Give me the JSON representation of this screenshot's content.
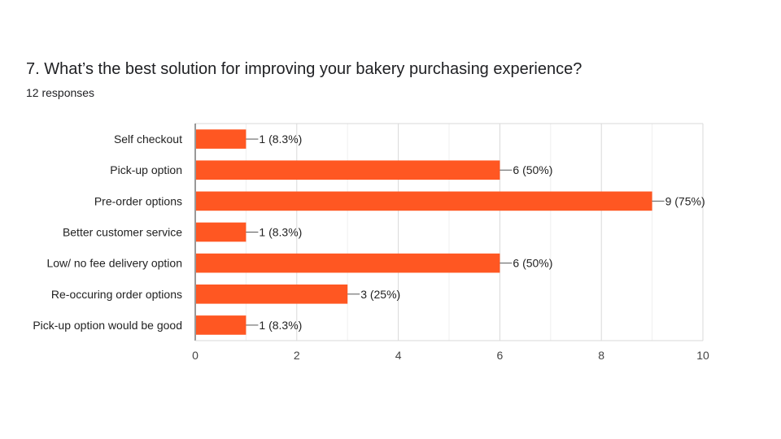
{
  "question_title": "7. What’s the best solution for improving your bakery purchasing experience?",
  "response_count": "12 responses",
  "chart_data": {
    "type": "bar",
    "orientation": "horizontal",
    "categories": [
      "Self checkout",
      "Pick-up option",
      "Pre-order options",
      "Better customer service",
      "Low/ no fee delivery option",
      "Re-occuring order options",
      "Pick-up option would be good"
    ],
    "values": [
      1,
      6,
      9,
      1,
      6,
      3,
      1
    ],
    "data_labels": [
      "1 (8.3%)",
      "6 (50%)",
      "9 (75%)",
      "1 (8.3%)",
      "6 (50%)",
      "3 (25%)",
      "1 (8.3%)"
    ],
    "xlim": [
      0,
      10
    ],
    "x_ticks": [
      "0",
      "2",
      "4",
      "6",
      "8",
      "10"
    ],
    "grid": true,
    "bar_color": "#ff5722"
  }
}
